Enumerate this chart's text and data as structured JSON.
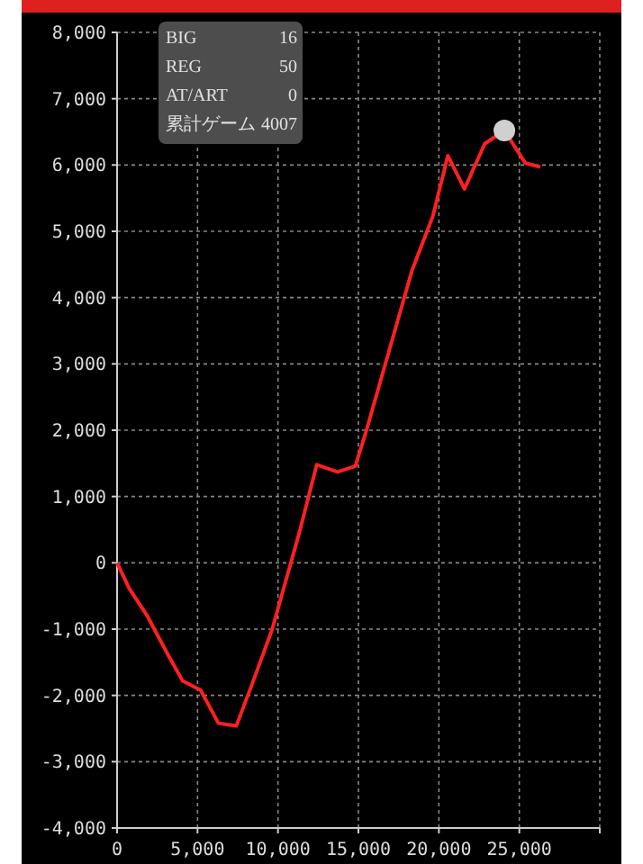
{
  "chart_data": {
    "type": "line",
    "x": [
      0,
      740,
      1850,
      3150,
      4070,
      5190,
      6300,
      7410,
      8330,
      9630,
      11300,
      12410,
      13700,
      14810,
      15440,
      18330,
      19630,
      20560,
      21590,
      22850,
      24070,
      25370,
      26300
    ],
    "series": [
      {
        "color": "#ff2020",
        "values": [
          0,
          -380,
          -790,
          -1380,
          -1780,
          -1920,
          -2420,
          -2460,
          -1870,
          -1010,
          430,
          1480,
          1370,
          1460,
          1950,
          4410,
          5230,
          6140,
          5640,
          6320,
          6520,
          6030,
          5970
        ]
      },
      {
        "type": "scatter",
        "color": "#d0d0d0",
        "x": [
          24070
        ],
        "values": [
          6520
        ]
      }
    ],
    "xlim": [
      0,
      30000
    ],
    "ylim": [
      -4000,
      8000
    ],
    "xticks": [
      {
        "value": 0,
        "label": "0"
      },
      {
        "value": 5000,
        "label": "5,000"
      },
      {
        "value": 10000,
        "label": "10,000"
      },
      {
        "value": 15000,
        "label": "15,000"
      },
      {
        "value": 20000,
        "label": "20,000"
      },
      {
        "value": 25000,
        "label": "25,000"
      },
      {
        "value": 30000,
        "label": null
      }
    ],
    "yticks": [
      {
        "value": -4000,
        "label": "-4,000"
      },
      {
        "value": -3000,
        "label": "-3,000"
      },
      {
        "value": -2000,
        "label": "-2,000"
      },
      {
        "value": -1000,
        "label": "-1,000"
      },
      {
        "value": 0,
        "label": "0"
      },
      {
        "value": 1000,
        "label": "1,000"
      },
      {
        "value": 2000,
        "label": "2,000"
      },
      {
        "value": 3000,
        "label": "3,000"
      },
      {
        "value": 4000,
        "label": "4,000"
      },
      {
        "value": 5000,
        "label": "5,000"
      },
      {
        "value": 6000,
        "label": "6,000"
      },
      {
        "value": 7000,
        "label": "7,000"
      },
      {
        "value": 8000,
        "label": "8,000"
      }
    ],
    "grid": true,
    "annotations": [
      "BIG",
      "16",
      "REG",
      "50",
      "AT/ART",
      "0",
      "累計ゲーム",
      "4007"
    ]
  }
}
